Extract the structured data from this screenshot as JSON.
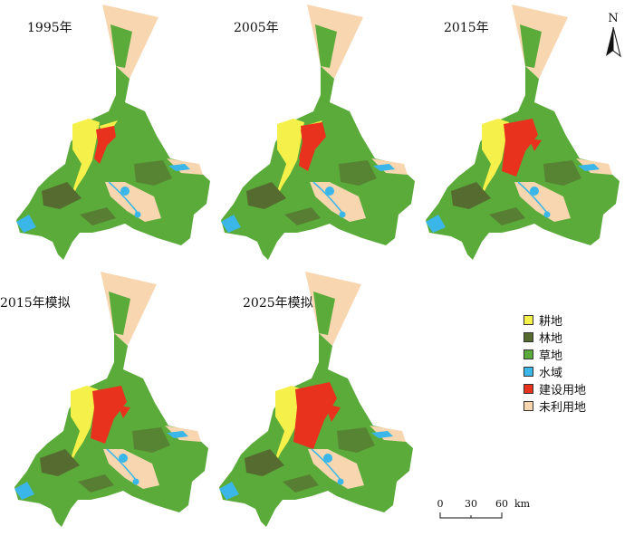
{
  "panels": [
    {
      "label": "1995年",
      "icon": "land-use-map-1995"
    },
    {
      "label": "2005年",
      "icon": "land-use-map-2005"
    },
    {
      "label": "2015年",
      "icon": "land-use-map-2015"
    },
    {
      "label": "2015年模拟",
      "icon": "land-use-map-2015-sim"
    },
    {
      "label": "2025年模拟",
      "icon": "land-use-map-2025-sim"
    }
  ],
  "legend": [
    {
      "label": "耕地",
      "color": "#f5f04a"
    },
    {
      "label": "林地",
      "color": "#556b2f"
    },
    {
      "label": "草地",
      "color": "#5aab3a"
    },
    {
      "label": "水域",
      "color": "#3ab7e8"
    },
    {
      "label": "建设用地",
      "color": "#e8321e"
    },
    {
      "label": "未利用地",
      "color": "#f8d6b0"
    }
  ],
  "north_arrow": {
    "label": "N"
  },
  "scale_bar": {
    "ticks": [
      "0",
      "30",
      "60"
    ],
    "unit": "km"
  }
}
